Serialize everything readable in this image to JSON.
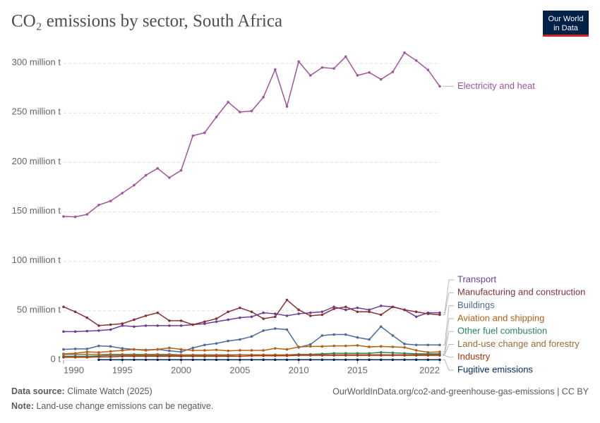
{
  "chart_data": {
    "type": "line",
    "title": "CO₂ emissions by sector, South Africa",
    "logo": [
      "Our World",
      "in Data"
    ],
    "x": [
      1990,
      1991,
      1992,
      1993,
      1994,
      1995,
      1996,
      1997,
      1998,
      1999,
      2000,
      2001,
      2002,
      2003,
      2004,
      2005,
      2006,
      2007,
      2008,
      2009,
      2010,
      2011,
      2012,
      2013,
      2014,
      2015,
      2016,
      2017,
      2018,
      2019,
      2020,
      2021,
      2022
    ],
    "xlim": [
      1990,
      2022
    ],
    "xticks": [
      1990,
      1995,
      2000,
      2005,
      2010,
      2015,
      2022
    ],
    "ylim": [
      0,
      312
    ],
    "yticks": [
      {
        "value": 0,
        "label": "0 t"
      },
      {
        "value": 50,
        "label": "50 million t"
      },
      {
        "value": 100,
        "label": "100 million t"
      },
      {
        "value": 150,
        "label": "150 million t"
      },
      {
        "value": 200,
        "label": "200 million t"
      },
      {
        "value": 250,
        "label": "250 million t"
      },
      {
        "value": 300,
        "label": "300 million t"
      }
    ],
    "grid": true,
    "series": [
      {
        "name": "Electricity and heat",
        "color": "#a2559c",
        "values": [
          145.4,
          145,
          147.5,
          157,
          161,
          169,
          177,
          187,
          194,
          184.6,
          192,
          227,
          230,
          246,
          261,
          251,
          252,
          266,
          294,
          256.6,
          302,
          288,
          296,
          295,
          307,
          288,
          291,
          284,
          291.5,
          311,
          303,
          293.6,
          277
        ]
      },
      {
        "name": "Transport",
        "color": "#6d3e91",
        "values": [
          29,
          29,
          29.5,
          30,
          31,
          35,
          34,
          35,
          35,
          35,
          35,
          36,
          37,
          39,
          41,
          43,
          44,
          48,
          47,
          45,
          47,
          48,
          49,
          54,
          51,
          53,
          51,
          55,
          54,
          51,
          44,
          48,
          48
        ]
      },
      {
        "name": "Manufacturing and construction",
        "color": "#883039",
        "values": [
          54,
          49,
          43,
          35,
          36,
          37,
          41,
          45,
          48,
          40,
          40,
          36,
          39,
          42,
          49,
          53,
          49,
          42,
          44,
          61,
          51,
          45,
          46,
          52,
          54,
          49,
          49,
          46,
          54,
          51,
          49,
          47,
          46
        ]
      },
      {
        "name": "Buildings",
        "color": "#4c6a9c",
        "values": [
          11,
          11.5,
          11.5,
          14.5,
          14,
          12,
          11,
          10.5,
          11,
          9.5,
          8.5,
          12.5,
          15.5,
          17,
          19.5,
          21,
          24,
          30,
          32,
          31,
          13,
          16,
          25,
          26,
          26,
          23,
          21,
          34,
          25,
          16.5,
          15.5,
          15.5,
          15.5
        ]
      },
      {
        "name": "Aviation and shipping",
        "color": "#b16214",
        "values": [
          6.5,
          7,
          8.5,
          8,
          9,
          10,
          11,
          10,
          11,
          12.5,
          11,
          10,
          10,
          10.5,
          9.5,
          10,
          10,
          10,
          12,
          11,
          13.5,
          14,
          14,
          14.5,
          14.5,
          15,
          13.5,
          14,
          13.5,
          13,
          10,
          8,
          8.5
        ]
      },
      {
        "name": "Other fuel combustion",
        "color": "#2c8465",
        "values": [
          4,
          4,
          4,
          4.5,
          5,
          5,
          5,
          5,
          5,
          5,
          5,
          5,
          5,
          5,
          5,
          5.5,
          5.5,
          5.5,
          5.5,
          5.5,
          6,
          6,
          6.5,
          7,
          7,
          7,
          7,
          8,
          7.5,
          7,
          6.5,
          6.5,
          6.5
        ]
      },
      {
        "name": "Land-use change and forestry",
        "color": "#996d39",
        "values": [
          6,
          6,
          6,
          6,
          6,
          6,
          6,
          6,
          6,
          6,
          5.5,
          5.5,
          5.5,
          5.5,
          5.5,
          5.5,
          5.5,
          5.5,
          5.5,
          5.5,
          5.5,
          5.5,
          5.5,
          5.5,
          5.5,
          5.5,
          5.5,
          5.5,
          5.5,
          5.5,
          5.5,
          5.5,
          5.5
        ]
      },
      {
        "name": "Industry",
        "color": "#b13507",
        "values": [
          3,
          3,
          3,
          3.5,
          3.5,
          4,
          4,
          4,
          4,
          4,
          4,
          4,
          4,
          4,
          4,
          4,
          4.5,
          4.5,
          4.5,
          4.5,
          5,
          5,
          5,
          5,
          5,
          5,
          5,
          5,
          5,
          5,
          5,
          5,
          5
        ]
      },
      {
        "name": "Fugitive emissions",
        "color": "#00295b",
        "values": [
          null,
          null,
          null,
          0.5,
          0.5,
          0.5,
          0.5,
          0.5,
          0.5,
          0.5,
          0.5,
          0.5,
          0.5,
          0.5,
          0.5,
          0.5,
          0.5,
          0.5,
          0.5,
          0.5,
          0.5,
          0.5,
          0.5,
          0.5,
          0.5,
          0.5,
          0.5,
          0.5,
          0.5,
          0.5,
          0.5,
          0.5,
          0.5
        ]
      }
    ],
    "source_label": "Data source:",
    "source": "Climate Watch (2025)",
    "url": "OurWorldInData.org/co2-and-greenhouse-gas-emissions | CC BY",
    "note_label": "Note:",
    "note": "Land-use change emissions can be negative."
  }
}
